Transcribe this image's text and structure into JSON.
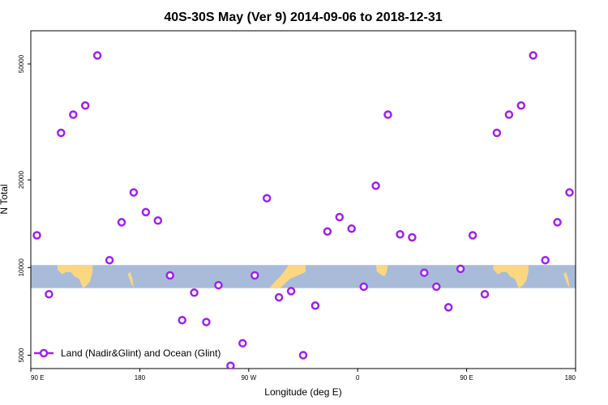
{
  "chart_data": {
    "type": "scatter",
    "title": "40S-30S May (Ver 9)   2014-09-06 to 2018-12-31",
    "xlabel": "Longitude (deg E)",
    "ylabel": "N Total",
    "y_scale": "log",
    "xlim": [
      90,
      540
    ],
    "ylim": [
      4500,
      65000
    ],
    "x_ticks": [
      {
        "value": 90,
        "label": "90 E"
      },
      {
        "value": 180,
        "label": "180"
      },
      {
        "value": 270,
        "label": "90 W"
      },
      {
        "value": 360,
        "label": "0"
      },
      {
        "value": 450,
        "label": "90 E"
      },
      {
        "value": 540,
        "label": "180"
      }
    ],
    "y_ticks": [
      {
        "value": 5000,
        "label": "5000"
      },
      {
        "value": 10000,
        "label": "10000"
      },
      {
        "value": 20000,
        "label": "20000"
      },
      {
        "value": 50000,
        "label": "50000"
      }
    ],
    "map_band": {
      "y_low": 8500,
      "y_high": 10200,
      "ocean_color": "#a8bcd9",
      "land_color": "#fcd77f"
    },
    "series": [
      {
        "name": "Land (Nadir&Glint) and Ocean (Glint)",
        "color": "#a020f0",
        "marker": "open-circle",
        "x": [
          95,
          105,
          115,
          125,
          135,
          145,
          155,
          165,
          175,
          185,
          195,
          205,
          215,
          225,
          235,
          245,
          255,
          265,
          275,
          285,
          295,
          305,
          315,
          325,
          335,
          345,
          355,
          365,
          375,
          385,
          395,
          405,
          415,
          425,
          435,
          445,
          455,
          465,
          475,
          485,
          495,
          505,
          515,
          525,
          535
        ],
        "y": [
          12900,
          8100,
          29000,
          33500,
          36000,
          53500,
          10600,
          14300,
          18100,
          15500,
          14500,
          9400,
          6600,
          8200,
          6500,
          8700,
          4600,
          5500,
          9400,
          17300,
          7900,
          8300,
          5000,
          7400,
          13300,
          14900,
          13600,
          8600,
          19100,
          33500,
          13000,
          12700,
          9600,
          8600,
          7300,
          9900,
          12900,
          8100,
          29000,
          33500,
          36000,
          53500,
          10600,
          14300,
          18100
        ]
      }
    ],
    "legend": {
      "placement": "bottom-left"
    }
  }
}
